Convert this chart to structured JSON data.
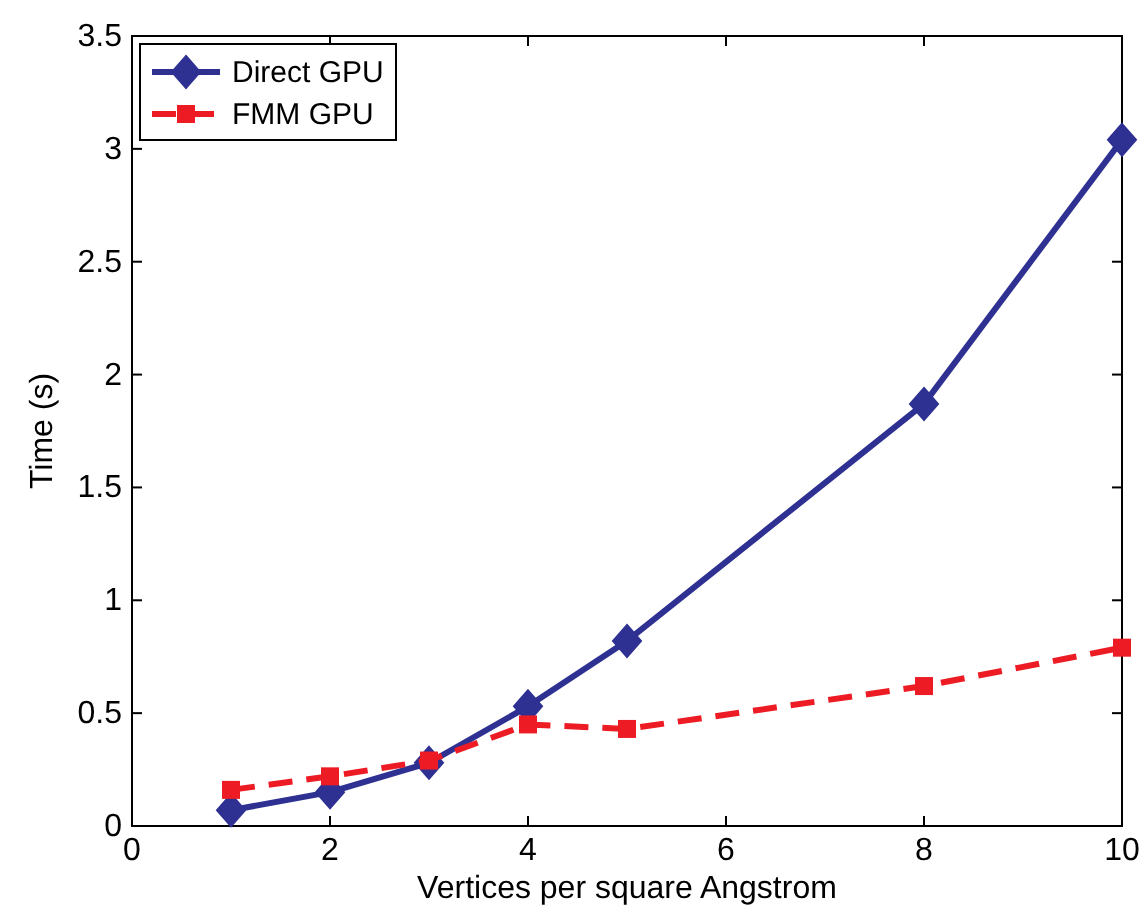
{
  "chart_data": {
    "type": "line",
    "xlabel": "Vertices per square Angstrom",
    "ylabel": "Time (s)",
    "x": [
      1,
      2,
      3,
      4,
      5,
      8,
      10
    ],
    "series": [
      {
        "name": "Direct GPU",
        "color": "#2e3192",
        "values": [
          0.07,
          0.15,
          0.28,
          0.53,
          0.82,
          1.87,
          3.04
        ],
        "marker": "diamond",
        "line_style": "solid"
      },
      {
        "name": "FMM GPU",
        "color": "#ed1c24",
        "values": [
          0.16,
          0.22,
          0.29,
          0.45,
          0.43,
          0.62,
          0.79
        ],
        "marker": "square",
        "line_style": "dashed"
      }
    ],
    "xlim": [
      0,
      10
    ],
    "xticks": [
      0,
      2,
      4,
      6,
      8,
      10
    ],
    "ylim": [
      0,
      3.5
    ],
    "yticks": [
      0,
      0.5,
      1,
      1.5,
      2,
      2.5,
      3,
      3.5
    ],
    "legend": "top left"
  }
}
